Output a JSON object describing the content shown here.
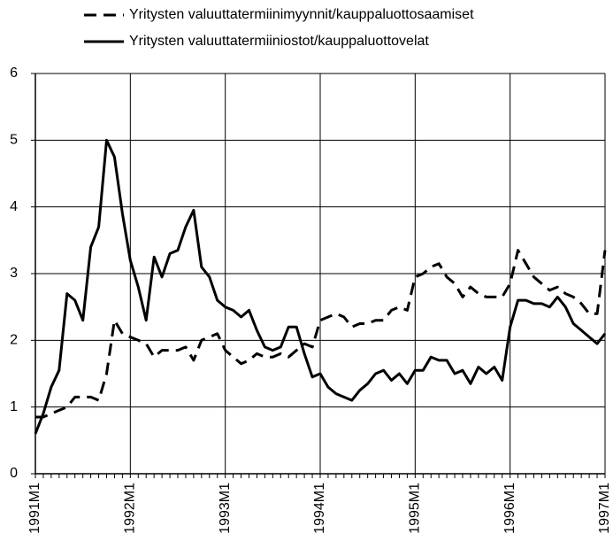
{
  "chart_data": {
    "type": "line",
    "categories": [
      "1991M1",
      null,
      null,
      null,
      null,
      null,
      null,
      null,
      null,
      null,
      null,
      null,
      "1992M1",
      null,
      null,
      null,
      null,
      null,
      null,
      null,
      null,
      null,
      null,
      null,
      "1993M1",
      null,
      null,
      null,
      null,
      null,
      null,
      null,
      null,
      null,
      null,
      null,
      "1994M1",
      null,
      null,
      null,
      null,
      null,
      null,
      null,
      null,
      null,
      null,
      null,
      "1995M1",
      null,
      null,
      null,
      null,
      null,
      null,
      null,
      null,
      null,
      null,
      null,
      "1996M1",
      null,
      null,
      null,
      null,
      null,
      null,
      null,
      null,
      null,
      null,
      null,
      "1997M1"
    ],
    "series": [
      {
        "name": "Yritysten valuuttatermiinimyynnit/kauppaluottosaamiset",
        "color": "#000000",
        "dash": true,
        "values": [
          0.85,
          0.85,
          0.9,
          0.95,
          1.0,
          1.15,
          1.15,
          1.15,
          1.1,
          1.5,
          2.3,
          2.1,
          2.05,
          2.0,
          1.95,
          1.75,
          1.85,
          1.85,
          1.85,
          1.9,
          1.7,
          2.0,
          2.05,
          2.1,
          1.85,
          1.75,
          1.65,
          1.7,
          1.8,
          1.75,
          1.75,
          1.8,
          1.75,
          1.85,
          1.95,
          1.9,
          2.3,
          2.35,
          2.4,
          2.35,
          2.2,
          2.25,
          2.25,
          2.3,
          2.3,
          2.45,
          2.5,
          2.45,
          2.95,
          3.0,
          3.1,
          3.15,
          2.95,
          2.85,
          2.65,
          2.8,
          2.7,
          2.65,
          2.65,
          2.65,
          2.85,
          3.35,
          3.15,
          2.95,
          2.85,
          2.75,
          2.8,
          2.7,
          2.65,
          2.55,
          2.4,
          2.4,
          3.35
        ]
      },
      {
        "name": "Yritysten valuuttatermiiniostot/kauppaluottovelat",
        "color": "#000000",
        "dash": false,
        "values": [
          0.6,
          0.9,
          1.3,
          1.55,
          2.7,
          2.6,
          2.3,
          3.4,
          3.7,
          5.0,
          4.75,
          3.9,
          3.2,
          2.8,
          2.3,
          3.25,
          2.95,
          3.3,
          3.35,
          3.7,
          3.95,
          3.1,
          2.95,
          2.6,
          2.5,
          2.45,
          2.35,
          2.45,
          2.15,
          1.9,
          1.85,
          1.9,
          2.2,
          2.2,
          1.8,
          1.45,
          1.5,
          1.3,
          1.2,
          1.15,
          1.1,
          1.25,
          1.35,
          1.5,
          1.55,
          1.4,
          1.5,
          1.35,
          1.55,
          1.55,
          1.75,
          1.7,
          1.7,
          1.5,
          1.55,
          1.35,
          1.6,
          1.5,
          1.6,
          1.4,
          2.2,
          2.6,
          2.6,
          2.55,
          2.55,
          2.5,
          2.65,
          2.5,
          2.25,
          2.15,
          2.05,
          1.95,
          2.1
        ]
      }
    ],
    "ylim": [
      0,
      6
    ],
    "yticks": [
      0,
      1,
      2,
      3,
      4,
      5,
      6
    ],
    "grid": true
  }
}
